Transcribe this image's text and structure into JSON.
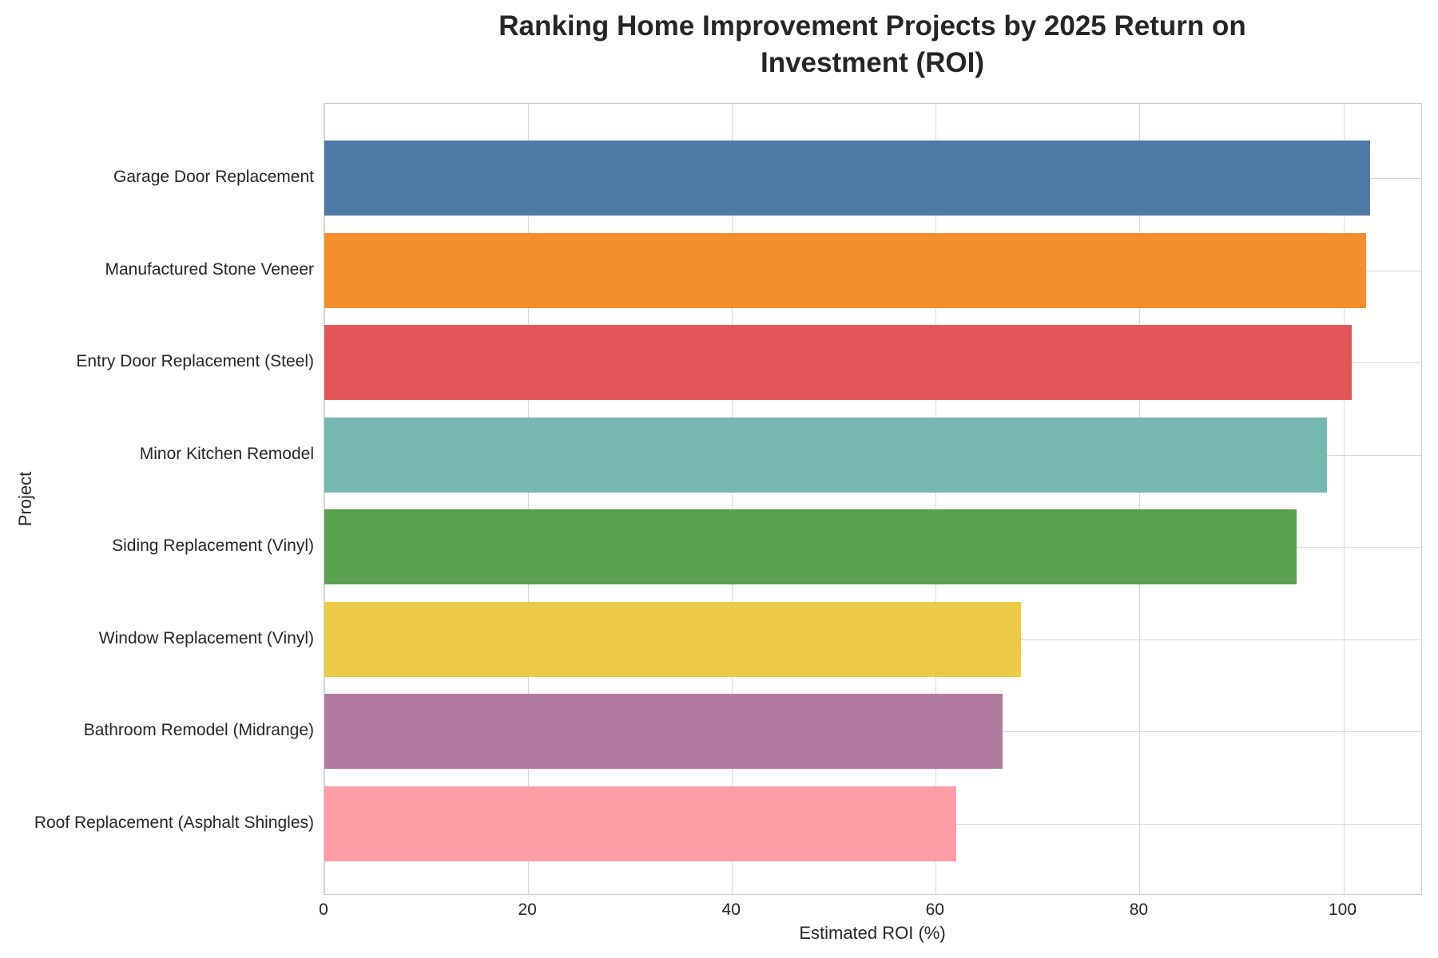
{
  "chart_data": {
    "type": "bar",
    "orientation": "horizontal",
    "title": "Ranking Home Improvement Projects by 2025 Return on Investment (ROI)",
    "xlabel": "Estimated ROI (%)",
    "ylabel": "Project",
    "categories": [
      "Garage Door Replacement",
      "Manufactured Stone Veneer",
      "Entry Door Replacement (Steel)",
      "Minor Kitchen Remodel",
      "Siding Replacement (Vinyl)",
      "Window Replacement (Vinyl)",
      "Bathroom Remodel (Midrange)",
      "Roof Replacement (Asphalt Shingles)"
    ],
    "values": [
      102.6,
      102.2,
      100.8,
      98.4,
      95.4,
      68.4,
      66.6,
      62.0
    ],
    "bar_colors": [
      "#4E79A7",
      "#F28E2B",
      "#E15759",
      "#76B7B2",
      "#59A14F",
      "#EDC948",
      "#B07AA1",
      "#FF9DA7"
    ],
    "xticks": [
      0,
      20,
      40,
      60,
      80,
      100
    ],
    "xlim": [
      0,
      107.8
    ],
    "grid": true,
    "legend": false,
    "colors": {
      "background": "#ffffff",
      "text": "#262626",
      "grid": "#d9d9d9",
      "axes_border": "#cccccc"
    }
  }
}
